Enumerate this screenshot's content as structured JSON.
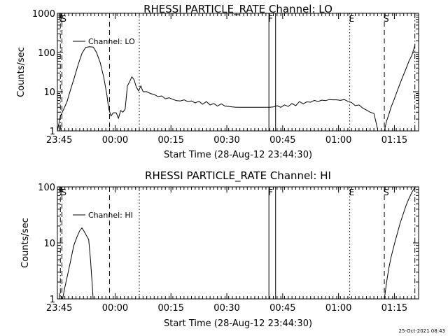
{
  "timestamp": "25-Oct-2021 08:43",
  "chart_data": [
    {
      "type": "line",
      "title": "RHESSI PARTICLE_RATE Channel: LO",
      "xlabel": "Start Time (28-Aug-12 23:44:30)",
      "ylabel": "Counts/sec",
      "yscale": "log",
      "ylim": [
        1,
        1000
      ],
      "yticks": [
        1,
        10,
        100,
        1000
      ],
      "ytick_labels": [
        "1",
        "10",
        "100",
        "1000"
      ],
      "xlim_minutes": [
        0,
        97
      ],
      "xticks": [
        {
          "t": 0.5,
          "label": "23:45"
        },
        {
          "t": 15.5,
          "label": "00:00"
        },
        {
          "t": 30.5,
          "label": "00:15"
        },
        {
          "t": 45.5,
          "label": "00:30"
        },
        {
          "t": 60.5,
          "label": "00:45"
        },
        {
          "t": 75.5,
          "label": "01:00"
        },
        {
          "t": 90.5,
          "label": "01:15"
        }
      ],
      "legend": "Channel: LO",
      "legend_position": "top-left",
      "markers": [
        {
          "t": 0.8,
          "label": "E",
          "style": "dash-dot"
        },
        {
          "t": 1.2,
          "label": "S",
          "style": "dashed"
        },
        {
          "t": 14.0,
          "label": "",
          "style": "dashed"
        },
        {
          "t": 22.0,
          "label": "",
          "style": "dotted"
        },
        {
          "t": 56.8,
          "label": "F",
          "style": "solid"
        },
        {
          "t": 58.6,
          "label": "",
          "style": "solid"
        },
        {
          "t": 78.5,
          "label": "E",
          "style": "dotted"
        },
        {
          "t": 87.8,
          "label": "S",
          "style": "dashed"
        },
        {
          "t": 96.0,
          "label": "",
          "style": "dash-dot"
        }
      ],
      "series": [
        {
          "segments": [
            [
              [
                0.0,
                1.0
              ],
              [
                0.8,
                2.4
              ],
              [
                1.6,
                3.4
              ],
              [
                2.6,
                5.6
              ],
              [
                3.5,
                11
              ],
              [
                4.5,
                22
              ],
              [
                5.6,
                50
              ],
              [
                6.6,
                95
              ],
              [
                7.6,
                135
              ],
              [
                8.6,
                140
              ],
              [
                9.6,
                138
              ],
              [
                10.5,
                100
              ],
              [
                11.5,
                55
              ],
              [
                12.5,
                22
              ],
              [
                13.3,
                8
              ],
              [
                13.8,
                3.6
              ],
              [
                14.4,
                2.4
              ],
              [
                15.0,
                2.9
              ],
              [
                15.8,
                2.9
              ],
              [
                16.4,
                2.1
              ],
              [
                17.0,
                3.3
              ],
              [
                17.6,
                3.0
              ],
              [
                18.2,
                3.6
              ],
              [
                18.8,
                14
              ],
              [
                19.4,
                18
              ],
              [
                20.0,
                24
              ],
              [
                20.6,
                20
              ],
              [
                21.2,
                13
              ],
              [
                21.8,
                10.5
              ],
              [
                22.4,
                14
              ],
              [
                23.0,
                10
              ],
              [
                24,
                10
              ],
              [
                25,
                9
              ],
              [
                26,
                8.5
              ],
              [
                27,
                7.5
              ],
              [
                28,
                7.8
              ],
              [
                29,
                6.6
              ],
              [
                30,
                7.0
              ],
              [
                31,
                6.4
              ],
              [
                32,
                5.9
              ],
              [
                33,
                5.8
              ],
              [
                34,
                6.2
              ],
              [
                35,
                5.6
              ],
              [
                36,
                5.8
              ],
              [
                37,
                5.2
              ],
              [
                38,
                5.7
              ],
              [
                39,
                4.8
              ],
              [
                40,
                5.6
              ],
              [
                41,
                4.6
              ],
              [
                42,
                5.0
              ],
              [
                43,
                4.3
              ],
              [
                44,
                4.9
              ],
              [
                45,
                4.3
              ],
              [
                46,
                4.2
              ],
              [
                47,
                4.1
              ],
              [
                48,
                4.0
              ],
              [
                49,
                4.0
              ],
              [
                50,
                4.0
              ],
              [
                51,
                4.0
              ],
              [
                52,
                4.0
              ],
              [
                53,
                4.0
              ],
              [
                54,
                4.0
              ],
              [
                55,
                4.0
              ],
              [
                56,
                4.0
              ],
              [
                57,
                4.0
              ],
              [
                58,
                4.1
              ],
              [
                59,
                4.4
              ],
              [
                60,
                4.0
              ],
              [
                61,
                4.6
              ],
              [
                62,
                4.2
              ],
              [
                63,
                5.0
              ],
              [
                64,
                4.4
              ],
              [
                65,
                5.6
              ],
              [
                66,
                4.9
              ],
              [
                67,
                5.5
              ],
              [
                68,
                5.4
              ],
              [
                69,
                6.0
              ],
              [
                70,
                5.6
              ],
              [
                71,
                6.1
              ],
              [
                72,
                5.9
              ],
              [
                73,
                6.3
              ],
              [
                74,
                6.2
              ],
              [
                75,
                6.2
              ],
              [
                76,
                6.0
              ],
              [
                77,
                6.3
              ],
              [
                78,
                5.7
              ],
              [
                79,
                5.3
              ],
              [
                80,
                4.4
              ],
              [
                81,
                4.6
              ],
              [
                82,
                3.8
              ],
              [
                83,
                3.4
              ],
              [
                84,
                3.0
              ],
              [
                85,
                2.8
              ],
              [
                85.6,
                1.6
              ],
              [
                86.0,
                1.1
              ]
            ],
            [
              [
                87.8,
                1.0
              ],
              [
                88.4,
                1.8
              ],
              [
                89.0,
                2.6
              ],
              [
                89.6,
                4.0
              ],
              [
                90.4,
                6.2
              ],
              [
                91.2,
                10
              ],
              [
                92.0,
                16
              ],
              [
                92.8,
                25
              ],
              [
                93.6,
                38
              ],
              [
                94.4,
                60
              ],
              [
                95.2,
                85
              ],
              [
                96.0,
                150
              ]
            ]
          ]
        }
      ]
    },
    {
      "type": "line",
      "title": "RHESSI PARTICLE_RATE Channel: HI",
      "xlabel": "Start Time (28-Aug-12 23:44:30)",
      "ylabel": "Counts/sec",
      "yscale": "log",
      "ylim": [
        1,
        100
      ],
      "yticks": [
        1,
        10,
        100
      ],
      "ytick_labels": [
        "1",
        "10",
        "100"
      ],
      "xlim_minutes": [
        0,
        97
      ],
      "xticks": [
        {
          "t": 0.5,
          "label": "23:45"
        },
        {
          "t": 15.5,
          "label": "00:00"
        },
        {
          "t": 30.5,
          "label": "00:15"
        },
        {
          "t": 45.5,
          "label": "00:30"
        },
        {
          "t": 60.5,
          "label": "00:45"
        },
        {
          "t": 75.5,
          "label": "01:00"
        },
        {
          "t": 90.5,
          "label": "01:15"
        }
      ],
      "legend": "Channel: HI",
      "legend_position": "top-left",
      "markers": [
        {
          "t": 0.8,
          "label": "E",
          "style": "dash-dot"
        },
        {
          "t": 1.2,
          "label": "S",
          "style": "dashed"
        },
        {
          "t": 14.0,
          "label": "",
          "style": "dashed"
        },
        {
          "t": 22.0,
          "label": "",
          "style": "dotted"
        },
        {
          "t": 56.8,
          "label": "F",
          "style": "solid"
        },
        {
          "t": 58.6,
          "label": "",
          "style": "solid"
        },
        {
          "t": 78.5,
          "label": "E",
          "style": "dotted"
        },
        {
          "t": 87.8,
          "label": "S",
          "style": "dashed"
        },
        {
          "t": 96.0,
          "label": "",
          "style": "dash-dot"
        }
      ],
      "series": [
        {
          "segments": [
            [
              [
                1.4,
                1.0
              ],
              [
                2.0,
                1.6
              ],
              [
                2.8,
                2.8
              ],
              [
                3.6,
                5.0
              ],
              [
                4.4,
                9.0
              ],
              [
                5.2,
                12.5
              ],
              [
                6.0,
                16.5
              ],
              [
                6.6,
                18.5
              ],
              [
                7.2,
                16
              ],
              [
                7.8,
                13.5
              ],
              [
                8.4,
                11.5
              ],
              [
                8.9,
                5
              ],
              [
                9.3,
                2
              ],
              [
                9.6,
                1.0
              ]
            ],
            [
              [
                87.8,
                1.0
              ],
              [
                88.4,
                2.0
              ],
              [
                89.0,
                3.5
              ],
              [
                89.6,
                5.5
              ],
              [
                90.4,
                9.0
              ],
              [
                91.2,
                14
              ],
              [
                92.0,
                22
              ],
              [
                92.8,
                32
              ],
              [
                93.6,
                46
              ],
              [
                94.4,
                62
              ],
              [
                95.2,
                80
              ],
              [
                96.0,
                98
              ]
            ]
          ]
        }
      ]
    }
  ]
}
